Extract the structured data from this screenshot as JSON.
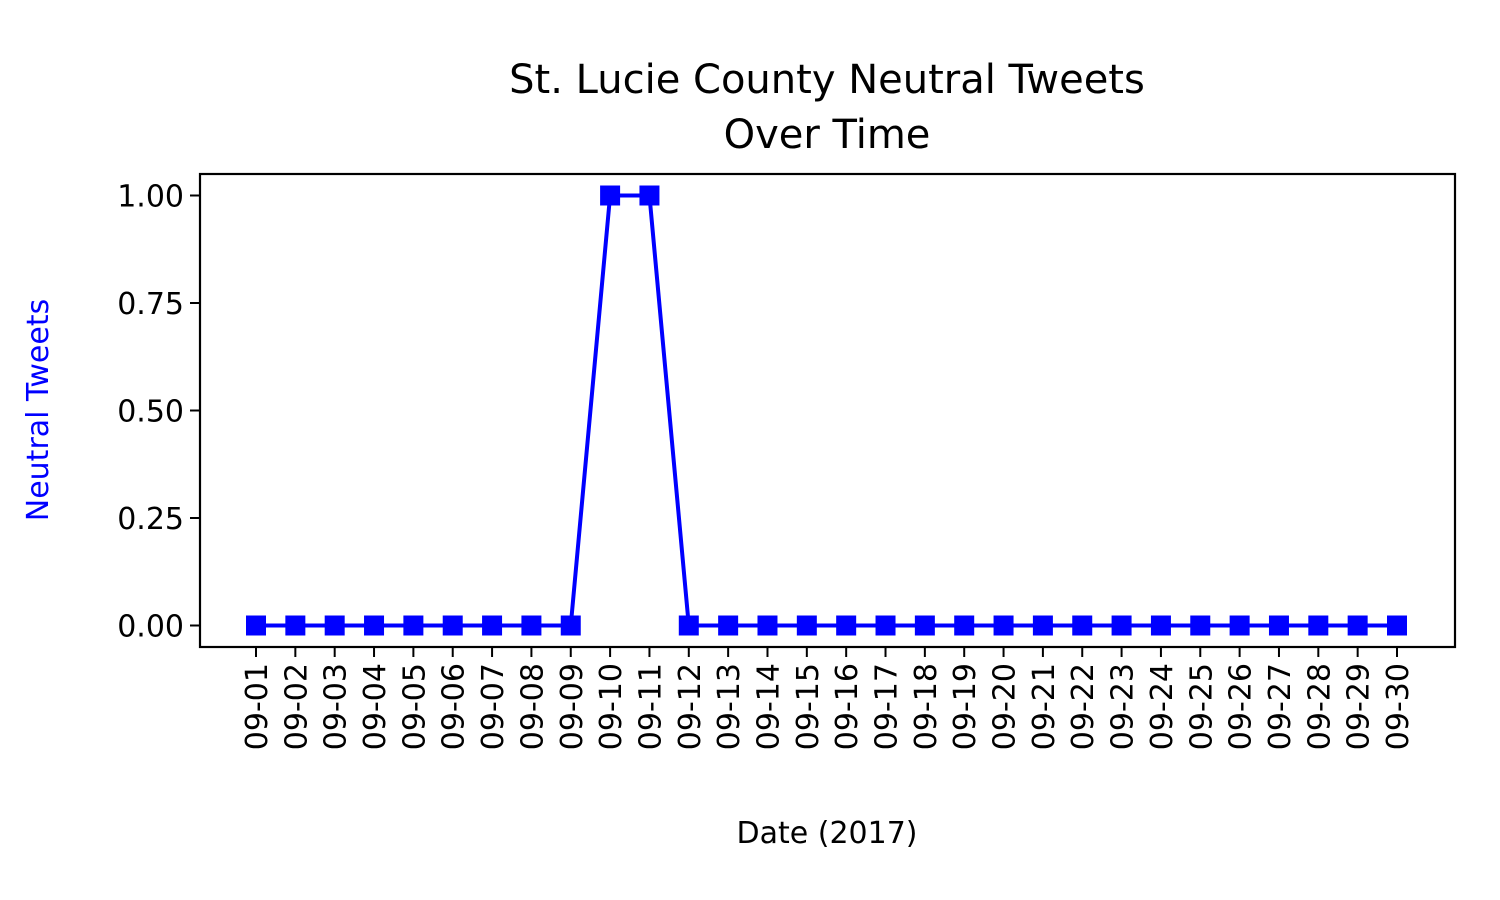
{
  "chart_data": {
    "type": "line",
    "title": [
      "St. Lucie County Neutral Tweets",
      "Over Time"
    ],
    "xlabel": "Date (2017)",
    "ylabel": "Neutral Tweets",
    "categories": [
      "09-01",
      "09-02",
      "09-03",
      "09-04",
      "09-05",
      "09-06",
      "09-07",
      "09-08",
      "09-09",
      "09-10",
      "09-11",
      "09-12",
      "09-13",
      "09-14",
      "09-15",
      "09-16",
      "09-17",
      "09-18",
      "09-19",
      "09-20",
      "09-21",
      "09-22",
      "09-23",
      "09-24",
      "09-25",
      "09-26",
      "09-27",
      "09-28",
      "09-29",
      "09-30"
    ],
    "series": [
      {
        "values": [
          0,
          0,
          0,
          0,
          0,
          0,
          0,
          0,
          0,
          1,
          1,
          0,
          0,
          0,
          0,
          0,
          0,
          0,
          0,
          0,
          0,
          0,
          0,
          0,
          0,
          0,
          0,
          0,
          0,
          0
        ],
        "color": "#0000ff",
        "marker": "square"
      }
    ],
    "yticks": [
      "0.00",
      "0.25",
      "0.50",
      "0.75",
      "1.00"
    ],
    "ylim": [
      -0.05,
      1.05
    ],
    "grid": false,
    "ylabel_color": "#0000ff"
  }
}
